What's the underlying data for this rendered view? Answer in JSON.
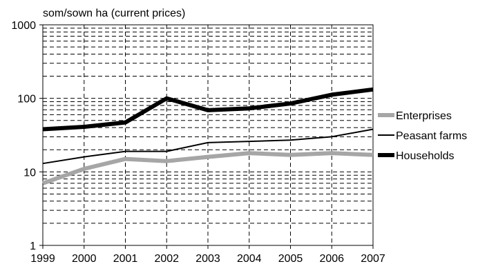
{
  "chart_data": {
    "type": "line",
    "ylabel": "som/sown ha (current prices)",
    "x": [
      1999,
      2000,
      2001,
      2002,
      2003,
      2004,
      2005,
      2006,
      2007
    ],
    "x_tick_labels": [
      "1999",
      "2000",
      "2001",
      "2002",
      "2003",
      "2004",
      "2005",
      "2006",
      "2007"
    ],
    "y_scale": "log",
    "ylim": [
      1,
      1000
    ],
    "y_tick_labels": [
      "1",
      "10",
      "100",
      "1000"
    ],
    "grid": true,
    "legend_position": "right",
    "series": [
      {
        "name": "Enterprises",
        "color": "#a6a6a6",
        "line": "thick",
        "values": [
          7,
          11,
          15,
          14,
          16,
          18,
          17,
          18,
          17
        ]
      },
      {
        "name": "Peasant farms",
        "color": "#000000",
        "line": "thin",
        "values": [
          13,
          16,
          19,
          19,
          25,
          26,
          27,
          30,
          38
        ]
      },
      {
        "name": "Households",
        "color": "#000000",
        "line": "thick",
        "values": [
          38,
          41,
          47,
          100,
          69,
          73,
          85,
          112,
          132
        ]
      }
    ]
  }
}
